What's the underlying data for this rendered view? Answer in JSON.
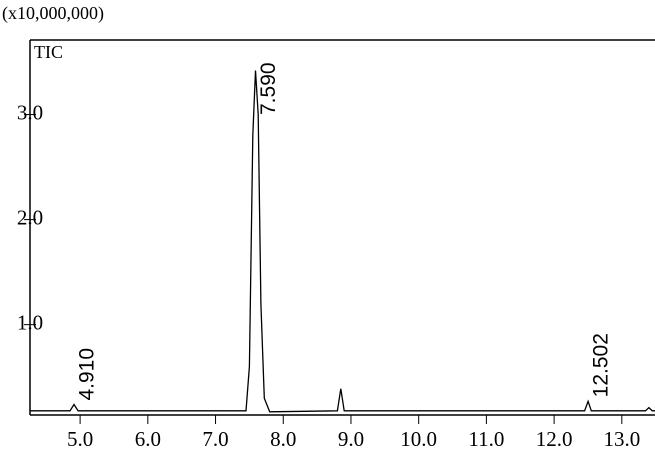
{
  "chart_data": {
    "type": "line",
    "y_multiplier": "(x10,000,000)",
    "series_label": "TIC",
    "x": [
      4.26,
      4.85,
      4.91,
      4.97,
      7.45,
      7.5,
      7.55,
      7.59,
      7.63,
      7.67,
      7.72,
      7.8,
      8.8,
      8.85,
      8.9,
      12.45,
      12.502,
      12.55,
      13.35,
      13.4,
      13.45,
      13.49
    ],
    "series": [
      {
        "name": "TIC",
        "color": "#000000",
        "values": [
          0.18,
          0.18,
          0.24,
          0.18,
          0.18,
          0.6,
          2.8,
          3.42,
          3.0,
          1.2,
          0.3,
          0.17,
          0.18,
          0.39,
          0.18,
          0.18,
          0.27,
          0.18,
          0.18,
          0.21,
          0.18,
          0.18
        ]
      }
    ],
    "annotations": [
      {
        "text": "4.910",
        "x": 4.91,
        "y": 0.24
      },
      {
        "text": "7.590",
        "x": 7.59,
        "y": 3.42
      },
      {
        "text": "12.502",
        "x": 12.502,
        "y": 0.27
      }
    ],
    "xlim": [
      4.26,
      13.49
    ],
    "ylim": [
      0.14,
      3.71
    ],
    "xticks": [
      {
        "value": 5,
        "label": "5.0"
      },
      {
        "value": 6,
        "label": "6.0"
      },
      {
        "value": 7,
        "label": "7.0"
      },
      {
        "value": 8,
        "label": "8.0"
      },
      {
        "value": 9,
        "label": "9.0"
      },
      {
        "value": 10,
        "label": "10.0"
      },
      {
        "value": 11,
        "label": "11.0"
      },
      {
        "value": 12,
        "label": "12.0"
      },
      {
        "value": 13,
        "label": "13.0"
      }
    ],
    "yticks": [
      {
        "value": 1,
        "label": "1.0"
      },
      {
        "value": 2,
        "label": "2.0"
      },
      {
        "value": 3,
        "label": "3.0"
      }
    ]
  }
}
